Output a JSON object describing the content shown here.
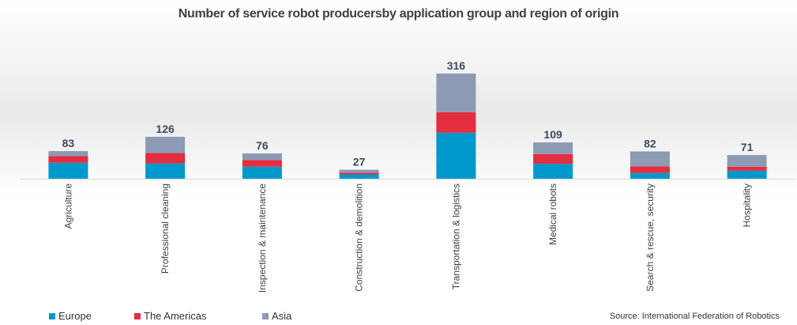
{
  "chart_data": {
    "type": "bar",
    "stacked": true,
    "title": "Number of service robot producersby application group and region of origin",
    "categories": [
      "Agriculture",
      "Professional cleaning",
      "Inspection & maintenance",
      "Construction & demolition",
      "Transportation & logistics",
      "Medical robots",
      "Search & rescue, security",
      "Hospitality"
    ],
    "totals": [
      83,
      126,
      76,
      27,
      316,
      109,
      82,
      71
    ],
    "series": [
      {
        "name": "Europe",
        "color": "#0099cc",
        "values": [
          48,
          46,
          36,
          13,
          138,
          45,
          17,
          24
        ]
      },
      {
        "name": "The Americas",
        "color": "#e42d3f",
        "values": [
          20,
          31,
          20,
          5,
          62,
          29,
          20,
          12
        ]
      },
      {
        "name": "Asia",
        "color": "#8c9ab4",
        "values": [
          15,
          49,
          20,
          9,
          116,
          35,
          45,
          35
        ]
      }
    ],
    "ylim": [
      0,
      316
    ],
    "grid": false,
    "legend_position": "bottom-left"
  },
  "source": "Source: International Federation of Robotics"
}
